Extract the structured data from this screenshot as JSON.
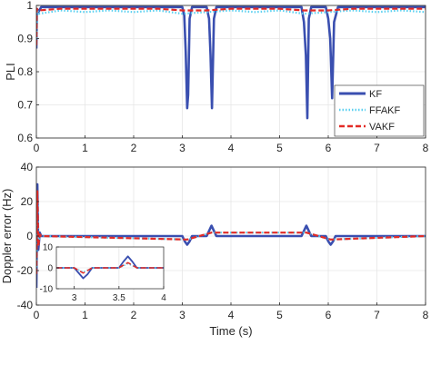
{
  "chart_data": [
    {
      "type": "line",
      "title": "",
      "xlabel": "",
      "ylabel": "PLI",
      "xlim": [
        0,
        8
      ],
      "ylim": [
        0.6,
        1.0
      ],
      "xticks": [
        "0",
        "1",
        "2",
        "3",
        "4",
        "5",
        "6",
        "7",
        "8"
      ],
      "yticks": [
        "0.6",
        "0.7",
        "0.8",
        "0.9",
        "1"
      ],
      "grid": true,
      "legend": "lower-right",
      "series": [
        {
          "name": "KF",
          "color": "#3a4fb0",
          "style": "solid",
          "x": [
            0,
            0.01,
            0.04,
            0.1,
            3.0,
            3.04,
            3.07,
            3.1,
            3.12,
            3.15,
            3.2,
            3.5,
            3.55,
            3.58,
            3.61,
            3.65,
            3.7,
            5.45,
            5.5,
            5.54,
            5.57,
            5.6,
            5.65,
            5.95,
            6.0,
            6.04,
            6.08,
            6.12,
            6.2,
            8.0
          ],
          "y": [
            0.87,
            0.99,
            0.98,
            0.995,
            0.995,
            0.97,
            0.86,
            0.69,
            0.73,
            0.96,
            0.995,
            0.995,
            0.96,
            0.85,
            0.69,
            0.96,
            0.995,
            0.995,
            0.95,
            0.85,
            0.66,
            0.96,
            0.995,
            0.995,
            0.96,
            0.9,
            0.72,
            0.95,
            0.995,
            0.995
          ]
        },
        {
          "name": "FFAKF",
          "color": "#5bd0f0",
          "style": "dotted",
          "x": [
            0,
            0.02,
            0.05,
            0.5,
            1.0,
            1.5,
            2.0,
            2.5,
            3.0,
            3.5,
            4.0,
            4.5,
            5.0,
            5.5,
            6.0,
            6.5,
            7.0,
            7.5,
            8.0
          ],
          "y": [
            0.9,
            0.985,
            0.975,
            0.985,
            0.98,
            0.985,
            0.98,
            0.985,
            0.975,
            0.98,
            0.985,
            0.98,
            0.985,
            0.975,
            0.98,
            0.985,
            0.98,
            0.985,
            0.98
          ]
        },
        {
          "name": "VAKF",
          "color": "#e32b26",
          "style": "dashed",
          "x": [
            0,
            0.01,
            0.04,
            0.5,
            1.0,
            1.5,
            2.0,
            2.5,
            3.0,
            3.5,
            4.0,
            4.5,
            5.0,
            5.5,
            6.0,
            6.5,
            7.0,
            7.5,
            8.0
          ],
          "y": [
            0.88,
            0.99,
            0.985,
            0.99,
            0.99,
            0.99,
            0.99,
            0.99,
            0.985,
            0.985,
            0.99,
            0.99,
            0.99,
            0.985,
            0.985,
            0.99,
            0.99,
            0.99,
            0.99
          ]
        }
      ]
    },
    {
      "type": "line",
      "title": "",
      "xlabel": "Time (s)",
      "ylabel": "Doppler error (Hz)",
      "xlim": [
        0,
        8
      ],
      "ylim": [
        -40,
        40
      ],
      "xticks": [
        "0",
        "1",
        "2",
        "3",
        "4",
        "5",
        "6",
        "7",
        "8"
      ],
      "yticks": [
        "-40",
        "-20",
        "0",
        "20",
        "40"
      ],
      "grid": true,
      "series": [
        {
          "name": "KF",
          "color": "#3a4fb0",
          "style": "solid",
          "x": [
            0,
            0.02,
            0.04,
            0.07,
            0.1,
            3.0,
            3.05,
            3.1,
            3.15,
            3.2,
            3.5,
            3.55,
            3.6,
            3.65,
            3.7,
            5.45,
            5.5,
            5.55,
            5.6,
            5.65,
            5.95,
            6.0,
            6.05,
            6.1,
            6.15,
            8.0
          ],
          "y": [
            -30,
            30,
            -8,
            2,
            0,
            0,
            -3,
            -5,
            -3,
            0,
            0,
            3,
            6,
            3,
            0,
            0,
            3,
            6,
            3,
            0,
            0,
            -3,
            -5,
            -3,
            0,
            0
          ]
        },
        {
          "name": "FFAKF",
          "color": "#5bd0f0",
          "style": "dotted",
          "x": [
            0,
            0.02,
            0.04,
            0.07,
            0.1,
            3.1,
            3.6,
            5.55,
            6.05,
            8.0
          ],
          "y": [
            -18,
            22,
            -5,
            1,
            0,
            -2,
            2,
            2,
            -2,
            0
          ]
        },
        {
          "name": "VAKF",
          "color": "#e32b26",
          "style": "dashed",
          "x": [
            0,
            0.02,
            0.04,
            0.07,
            0.1,
            3.1,
            3.6,
            5.55,
            6.05,
            8.0
          ],
          "y": [
            -22,
            26,
            -6,
            1,
            0,
            -2,
            2,
            2,
            -2,
            0
          ]
        }
      ],
      "inset": {
        "xlim": [
          2.8,
          4.0
        ],
        "ylim": [
          -10,
          10
        ],
        "xticks": [
          "3",
          "3.5",
          "4"
        ],
        "yticks": [
          "-10",
          "0",
          "10"
        ],
        "series": [
          {
            "name": "KF",
            "x": [
              2.8,
              3.0,
              3.05,
              3.1,
              3.15,
              3.2,
              3.5,
              3.55,
              3.6,
              3.65,
              3.7,
              4.0
            ],
            "y": [
              0,
              0,
              -2.5,
              -5,
              -3,
              0,
              0,
              3,
              5.5,
              3,
              0,
              0
            ]
          },
          {
            "name": "FFAKF",
            "x": [
              2.8,
              3.0,
              3.1,
              3.2,
              3.5,
              3.6,
              3.7,
              4.0
            ],
            "y": [
              0,
              0,
              -2,
              0,
              0,
              2,
              0,
              0
            ]
          },
          {
            "name": "VAKF",
            "x": [
              2.8,
              3.0,
              3.1,
              3.2,
              3.5,
              3.6,
              3.7,
              4.0
            ],
            "y": [
              0,
              0,
              -2.5,
              0,
              0,
              2.5,
              0,
              0
            ]
          }
        ]
      }
    }
  ]
}
